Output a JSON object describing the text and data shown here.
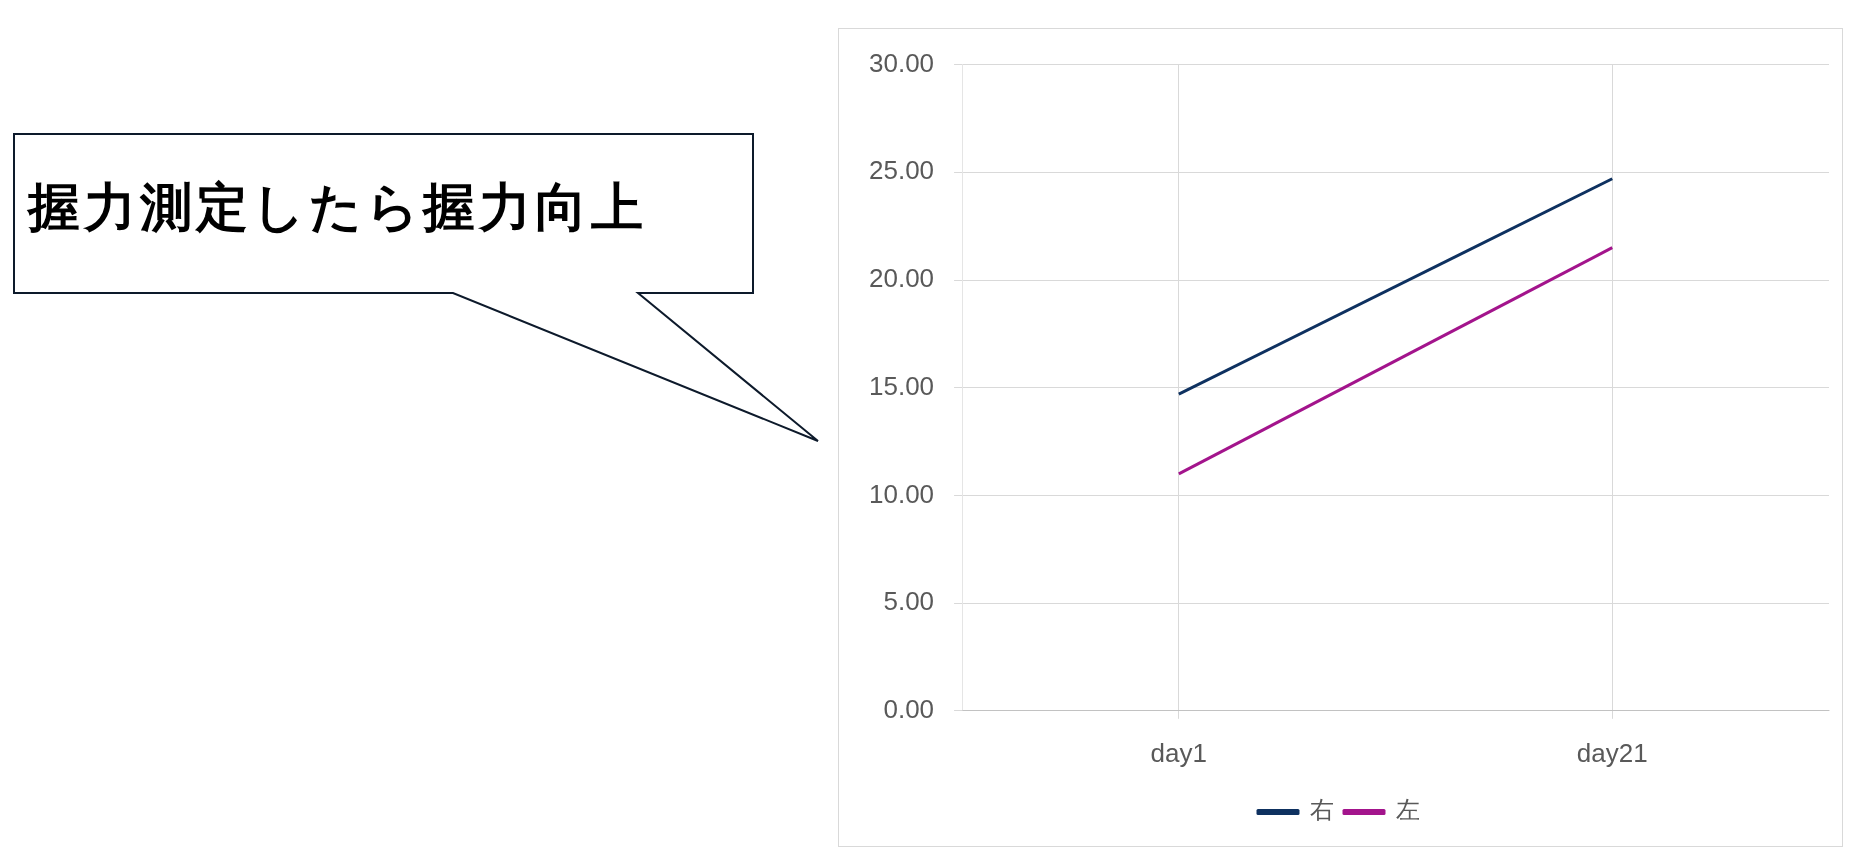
{
  "chart_data": {
    "type": "line",
    "categories": [
      "day1",
      "day21"
    ],
    "series": [
      {
        "name": "右",
        "color": "#0e3160",
        "values": [
          14.7,
          24.7
        ]
      },
      {
        "name": "左",
        "color": "#a3148c",
        "values": [
          11.0,
          21.5
        ]
      }
    ],
    "ylim": [
      0,
      30
    ],
    "yticks": [
      {
        "value": 0,
        "label": "0.00"
      },
      {
        "value": 5,
        "label": "5.00"
      },
      {
        "value": 10,
        "label": "10.00"
      },
      {
        "value": 15,
        "label": "15.00"
      },
      {
        "value": 20,
        "label": "20.00"
      },
      {
        "value": 25,
        "label": "25.00"
      },
      {
        "value": 30,
        "label": "30.00"
      }
    ],
    "grid": true,
    "legend": "bottom",
    "marker": "none",
    "line_style": "solid",
    "annotations": [
      "握力測定したら握力向上"
    ]
  }
}
